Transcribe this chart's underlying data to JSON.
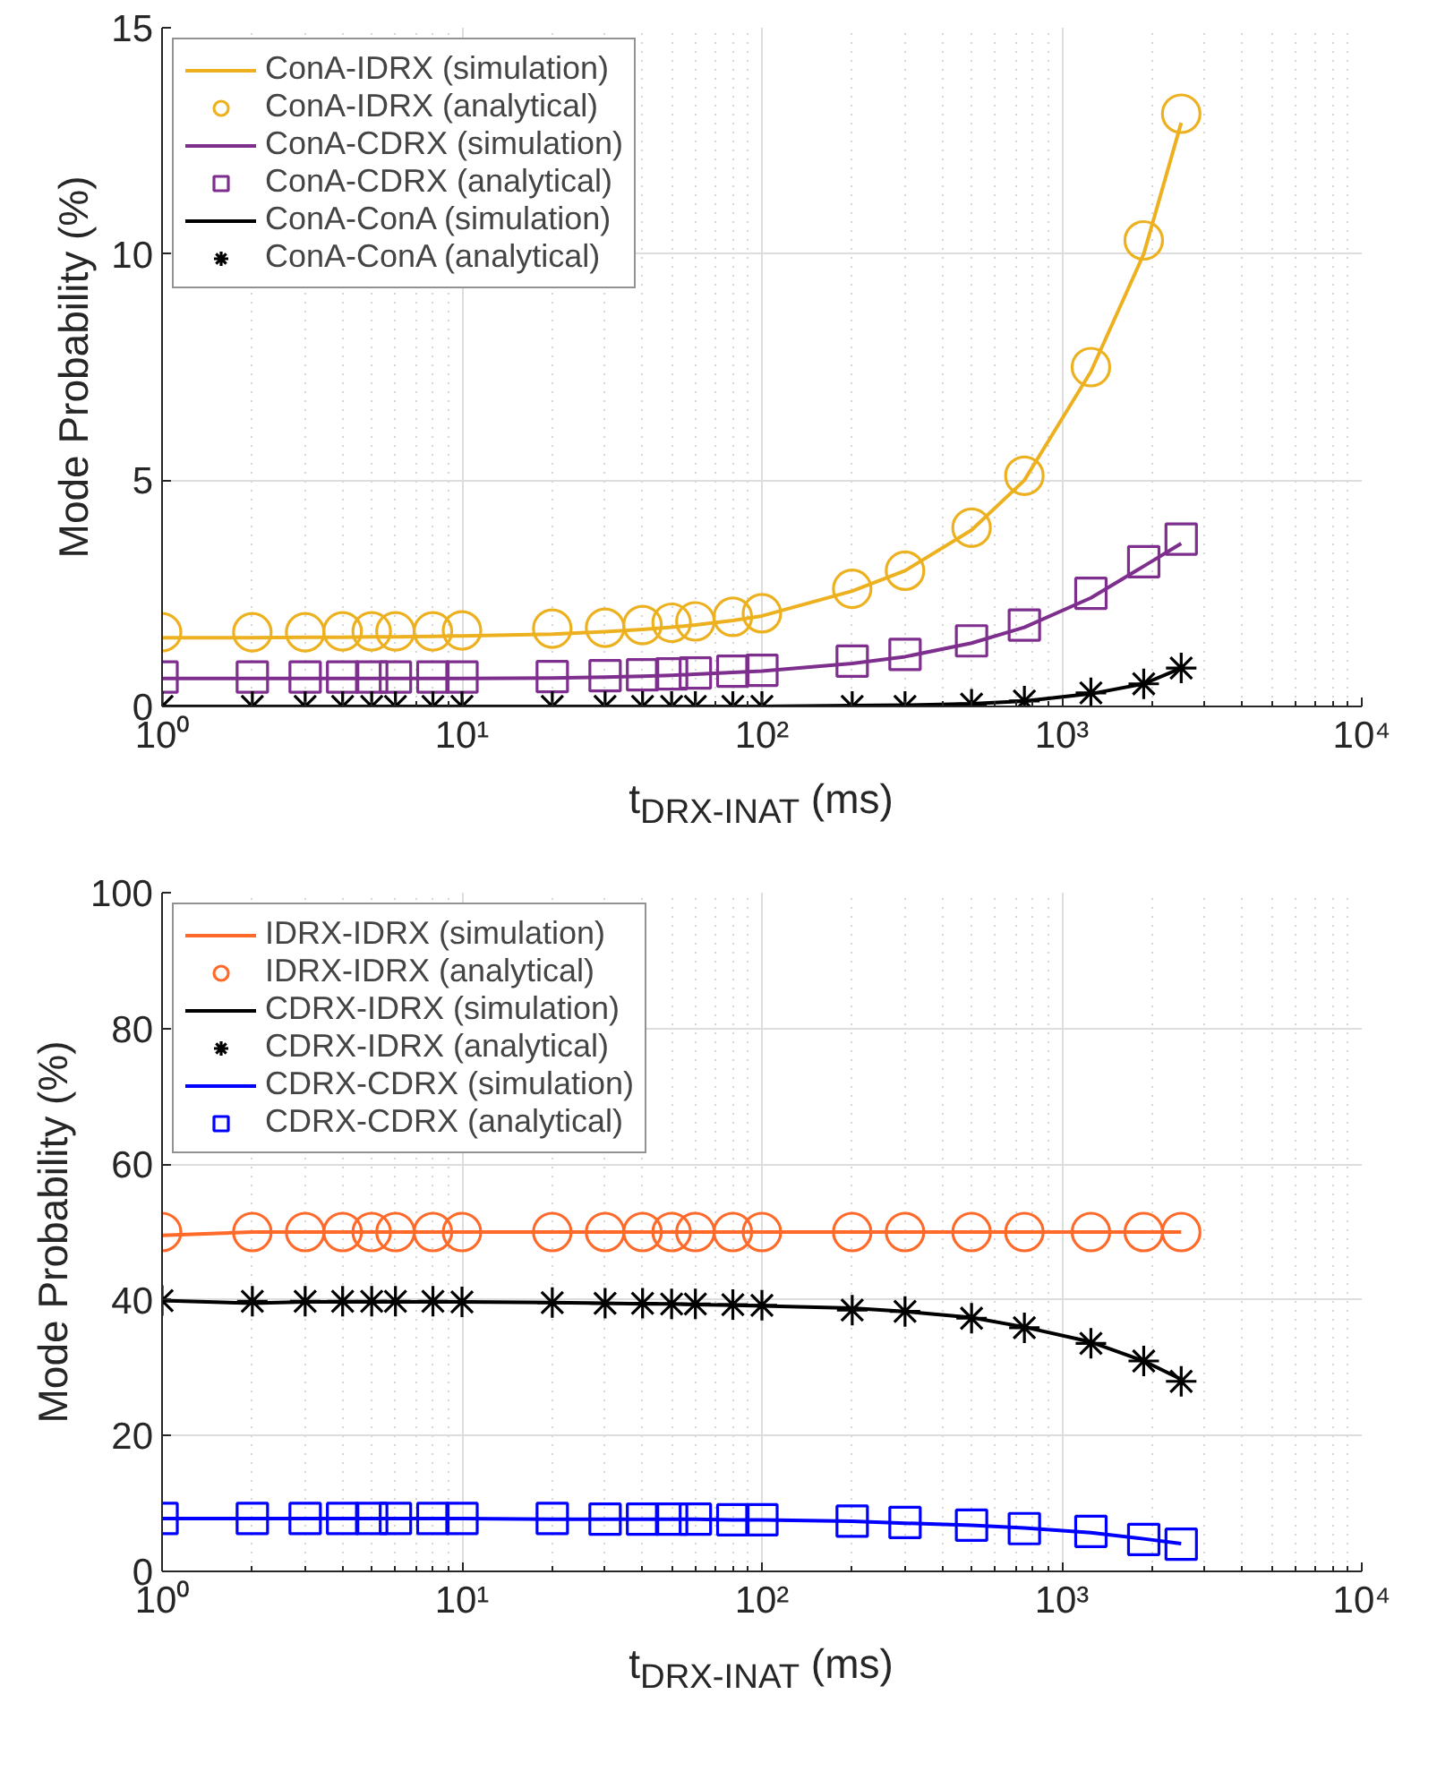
{
  "chart_data": [
    {
      "type": "line",
      "xlabel": "t$_{DRX-INAT}$ (ms)",
      "ylabel": "Mode Probability (%)",
      "log": "x",
      "grid": true,
      "legend": "top left",
      "x": [
        1,
        2,
        3,
        4,
        5,
        6,
        8,
        10,
        20,
        30,
        40,
        50,
        60,
        80,
        100,
        200,
        300,
        500,
        750,
        1250,
        1875,
        2500
      ],
      "xlim": [
        1,
        10000
      ],
      "xticks": [
        {
          "value": 1,
          "label": "10⁰"
        },
        {
          "value": 10,
          "label": "10¹"
        },
        {
          "value": 100,
          "label": "10²"
        },
        {
          "value": 1000,
          "label": "10³"
        },
        {
          "value": 10000,
          "label": "10⁴"
        }
      ],
      "ylim": [
        0,
        15
      ],
      "yticks": [
        0,
        5,
        10,
        15
      ],
      "series": [
        {
          "name": "ConA-IDRX (simulation)",
          "type": "line",
          "color": "#edb120",
          "values": [
            1.52,
            1.52,
            1.53,
            1.53,
            1.54,
            1.54,
            1.55,
            1.56,
            1.6,
            1.65,
            1.7,
            1.75,
            1.8,
            1.9,
            2.0,
            2.55,
            3.0,
            3.9,
            5.0,
            7.4,
            10.0,
            12.9
          ]
        },
        {
          "name": "ConA-IDRX (analytical)",
          "type": "scatter",
          "marker": "circle",
          "color": "#edb120",
          "values": [
            1.64,
            1.64,
            1.64,
            1.66,
            1.66,
            1.66,
            1.66,
            1.68,
            1.72,
            1.74,
            1.8,
            1.85,
            1.88,
            1.98,
            2.06,
            2.6,
            3.0,
            3.95,
            5.1,
            7.5,
            10.3,
            13.1
          ]
        },
        {
          "name": "ConA-CDRX (simulation)",
          "type": "line",
          "color": "#7e2f8e",
          "values": [
            0.62,
            0.62,
            0.62,
            0.62,
            0.62,
            0.62,
            0.62,
            0.62,
            0.63,
            0.65,
            0.67,
            0.69,
            0.71,
            0.75,
            0.78,
            0.95,
            1.1,
            1.4,
            1.75,
            2.4,
            3.1,
            3.6
          ]
        },
        {
          "name": "ConA-CDRX (analytical)",
          "type": "scatter",
          "marker": "square",
          "color": "#7e2f8e",
          "values": [
            0.65,
            0.65,
            0.65,
            0.65,
            0.65,
            0.65,
            0.65,
            0.65,
            0.66,
            0.68,
            0.7,
            0.72,
            0.74,
            0.78,
            0.8,
            1.0,
            1.15,
            1.45,
            1.8,
            2.5,
            3.2,
            3.7
          ]
        },
        {
          "name": "ConA-ConA (simulation)",
          "type": "line",
          "color": "#000000",
          "values": [
            0,
            0,
            0,
            0,
            0,
            0,
            0,
            0,
            0,
            0,
            0,
            0,
            0,
            0,
            0,
            0.02,
            0.03,
            0.06,
            0.12,
            0.28,
            0.5,
            0.85
          ]
        },
        {
          "name": "ConA-ConA (analytical)",
          "type": "scatter",
          "marker": "cross",
          "color": "#000000",
          "values": [
            0,
            0,
            0,
            0,
            0,
            0,
            0,
            0,
            0,
            0,
            0,
            0,
            0,
            0,
            0,
            0,
            0,
            0.05,
            0.12,
            0.3,
            0.5,
            0.85
          ]
        }
      ]
    },
    {
      "type": "line",
      "xlabel": "t$_{DRX-INAT}$ (ms)",
      "ylabel": "Mode Probability (%)",
      "log": "x",
      "grid": true,
      "legend": "top left",
      "x": [
        1,
        2,
        3,
        4,
        5,
        6,
        8,
        10,
        20,
        30,
        40,
        50,
        60,
        80,
        100,
        200,
        300,
        500,
        750,
        1250,
        1875,
        2500
      ],
      "xlim": [
        1,
        10000
      ],
      "xticks": [
        {
          "value": 1,
          "label": "10⁰"
        },
        {
          "value": 10,
          "label": "10¹"
        },
        {
          "value": 100,
          "label": "10²"
        },
        {
          "value": 1000,
          "label": "10³"
        },
        {
          "value": 10000,
          "label": "10⁴"
        }
      ],
      "ylim": [
        0,
        100
      ],
      "yticks": [
        0,
        20,
        40,
        60,
        80,
        100
      ],
      "series": [
        {
          "name": "IDRX-IDRX (simulation)",
          "type": "line",
          "color": "#ff6929",
          "values": [
            49.5,
            50,
            50,
            50,
            50,
            50,
            50,
            50,
            50,
            50,
            50,
            50,
            50,
            50,
            50,
            50,
            50,
            50,
            50,
            50,
            50,
            50
          ]
        },
        {
          "name": "IDRX-IDRX (analytical)",
          "type": "scatter",
          "marker": "circle",
          "color": "#ff6929",
          "values": [
            50,
            50,
            50,
            50,
            50,
            50,
            50,
            50,
            50,
            50,
            50,
            50,
            50,
            50,
            50,
            50,
            50,
            50,
            50,
            50,
            50,
            50
          ]
        },
        {
          "name": "CDRX-IDRX (simulation)",
          "type": "line",
          "color": "#000000",
          "values": [
            39.9,
            39.5,
            39.7,
            39.7,
            39.7,
            39.7,
            39.7,
            39.7,
            39.6,
            39.5,
            39.4,
            39.4,
            39.3,
            39.2,
            39.1,
            38.8,
            38.3,
            37.4,
            36.0,
            33.8,
            31.0,
            28.3
          ]
        },
        {
          "name": "CDRX-IDRX (analytical)",
          "type": "scatter",
          "marker": "cross",
          "color": "#000000",
          "values": [
            39.9,
            39.8,
            39.8,
            39.8,
            39.8,
            39.8,
            39.8,
            39.7,
            39.6,
            39.5,
            39.5,
            39.4,
            39.4,
            39.3,
            39.2,
            38.5,
            38.3,
            37.3,
            35.9,
            33.6,
            31.0,
            28.0
          ]
        },
        {
          "name": "CDRX-CDRX (simulation)",
          "type": "line",
          "color": "#0000ff",
          "values": [
            7.8,
            7.8,
            7.8,
            7.8,
            7.8,
            7.8,
            7.8,
            7.8,
            7.7,
            7.7,
            7.7,
            7.7,
            7.7,
            7.6,
            7.6,
            7.4,
            7.1,
            6.8,
            6.4,
            5.7,
            4.8,
            4.1
          ]
        },
        {
          "name": "CDRX-CDRX (analytical)",
          "type": "scatter",
          "marker": "square",
          "color": "#0000ff",
          "values": [
            7.8,
            7.8,
            7.8,
            7.8,
            7.8,
            7.8,
            7.8,
            7.8,
            7.8,
            7.7,
            7.7,
            7.7,
            7.7,
            7.6,
            7.6,
            7.4,
            7.2,
            6.8,
            6.3,
            5.9,
            4.7,
            4.0
          ]
        }
      ]
    }
  ]
}
